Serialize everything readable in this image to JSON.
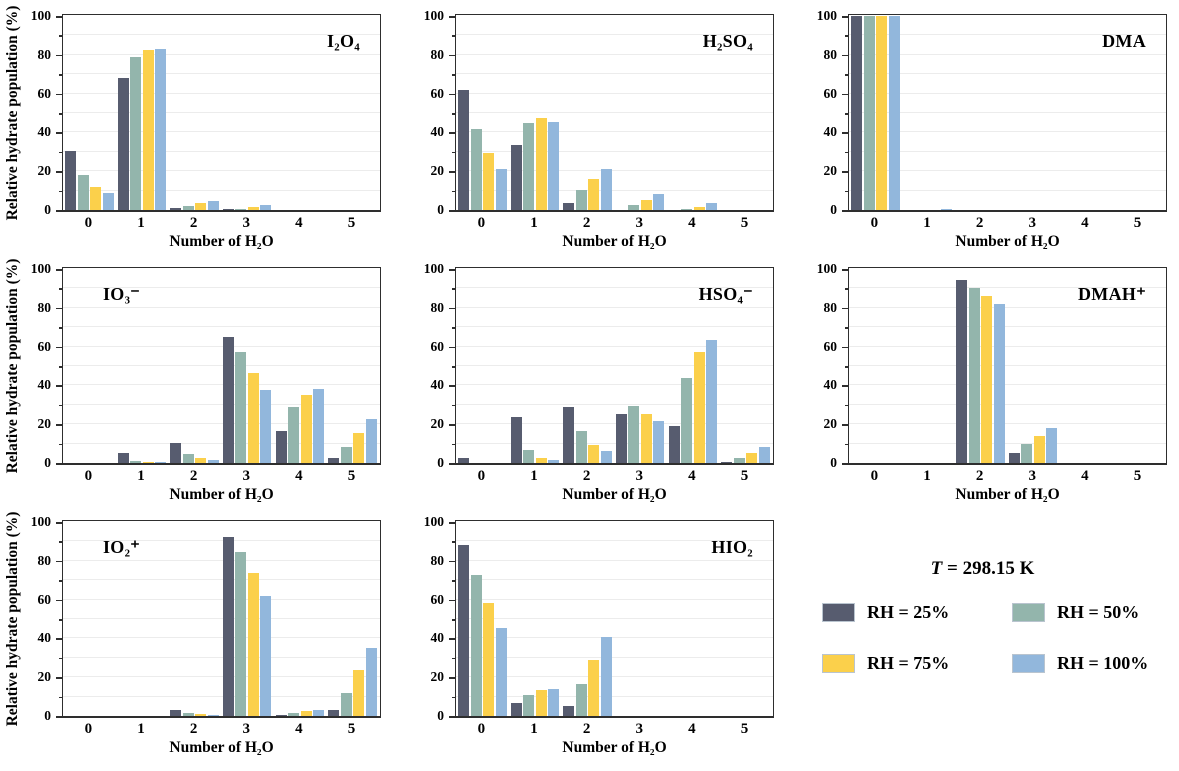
{
  "figure": {
    "ylabel": "Relative hydrate population (%)",
    "xlabel": "Number of H₂O",
    "categories": [
      "0",
      "1",
      "2",
      "3",
      "4",
      "5"
    ],
    "yticks": [
      0,
      20,
      40,
      60,
      80,
      100
    ],
    "ylim": [
      0,
      100
    ],
    "grid": "horizontal, every 10, light gray",
    "gridline_color": "#ececec",
    "axis_color": "#2e2e2e"
  },
  "legend": {
    "temp_symbol": "T",
    "temp_rest": " = 298.15 K",
    "position": "bottom-right cell of 3x3 grid",
    "entries": [
      {
        "label": "RH = 25%",
        "color": "#575c6f"
      },
      {
        "label": "RH = 50%",
        "color": "#93b5ac"
      },
      {
        "label": "RH = 75%",
        "color": "#fbd04b"
      },
      {
        "label": "RH = 100%",
        "color": "#92b7dc"
      }
    ]
  },
  "chart_data": [
    {
      "type": "bar",
      "title": "I₂O₄",
      "title_pos": "right",
      "xlabel": "Number of H₂O",
      "ylabel": "Relative hydrate population (%)",
      "ylim": [
        0,
        100
      ],
      "categories": [
        "0",
        "1",
        "2",
        "3",
        "4",
        "5"
      ],
      "series": [
        {
          "name": "RH = 25%",
          "values": [
            30.5,
            68,
            1,
            0.3,
            0,
            0
          ]
        },
        {
          "name": "RH = 50%",
          "values": [
            18,
            79,
            2,
            0.5,
            0,
            0
          ]
        },
        {
          "name": "RH = 75%",
          "values": [
            12,
            82.5,
            3.5,
            1.5,
            0,
            0
          ]
        },
        {
          "name": "RH = 100%",
          "values": [
            9,
            83,
            4.5,
            2.7,
            0,
            0
          ]
        }
      ]
    },
    {
      "type": "bar",
      "title": "H₂SO₄",
      "title_pos": "right",
      "xlabel": "Number of H₂O",
      "ylabel": "Relative hydrate population (%)",
      "ylim": [
        0,
        100
      ],
      "categories": [
        "0",
        "1",
        "2",
        "3",
        "4",
        "5"
      ],
      "series": [
        {
          "name": "RH = 25%",
          "values": [
            62,
            33.5,
            3.5,
            0,
            0,
            0
          ]
        },
        {
          "name": "RH = 50%",
          "values": [
            42,
            45,
            10.5,
            2.5,
            0.5,
            0
          ]
        },
        {
          "name": "RH = 75%",
          "values": [
            29.5,
            47.5,
            16,
            5,
            1.5,
            0
          ]
        },
        {
          "name": "RH = 100%",
          "values": [
            21,
            45.5,
            21,
            8.5,
            3.5,
            0
          ]
        }
      ]
    },
    {
      "type": "bar",
      "title": "DMA",
      "title_pos": "right",
      "xlabel": "Number of H₂O",
      "ylabel": "Relative hydrate population (%)",
      "ylim": [
        0,
        100
      ],
      "categories": [
        "0",
        "1",
        "2",
        "3",
        "4",
        "5"
      ],
      "series": [
        {
          "name": "RH = 25%",
          "values": [
            100,
            0,
            0,
            0,
            0,
            0
          ]
        },
        {
          "name": "RH = 50%",
          "values": [
            100,
            0,
            0,
            0,
            0,
            0
          ]
        },
        {
          "name": "RH = 75%",
          "values": [
            100,
            0,
            0,
            0,
            0,
            0
          ]
        },
        {
          "name": "RH = 100%",
          "values": [
            100,
            0.4,
            0,
            0,
            0,
            0
          ]
        }
      ]
    },
    {
      "type": "bar",
      "title": "IO₃⁻",
      "title_pos": "left",
      "xlabel": "Number of H₂O",
      "ylabel": "Relative hydrate population (%)",
      "ylim": [
        0,
        100
      ],
      "categories": [
        "0",
        "1",
        "2",
        "3",
        "4",
        "5"
      ],
      "series": [
        {
          "name": "RH = 25%",
          "values": [
            0,
            5,
            10.5,
            65,
            16.5,
            2.5
          ]
        },
        {
          "name": "RH = 50%",
          "values": [
            0,
            1,
            4.5,
            57,
            29,
            8.5
          ]
        },
        {
          "name": "RH = 75%",
          "values": [
            0,
            0.3,
            2.5,
            46.5,
            35,
            15.5
          ]
        },
        {
          "name": "RH = 100%",
          "values": [
            0,
            0.3,
            1.5,
            37.5,
            38,
            22.5
          ]
        }
      ]
    },
    {
      "type": "bar",
      "title": "HSO₄⁻",
      "title_pos": "right",
      "xlabel": "Number of H₂O",
      "ylabel": "Relative hydrate population (%)",
      "ylim": [
        0,
        100
      ],
      "categories": [
        "0",
        "1",
        "2",
        "3",
        "4",
        "5"
      ],
      "series": [
        {
          "name": "RH = 25%",
          "values": [
            2.5,
            23.5,
            29,
            25.5,
            19,
            0.5
          ]
        },
        {
          "name": "RH = 50%",
          "values": [
            0,
            6.5,
            16.5,
            29.5,
            44,
            2.5
          ]
        },
        {
          "name": "RH = 75%",
          "values": [
            0,
            2.5,
            9.5,
            25.5,
            57,
            5
          ]
        },
        {
          "name": "RH = 100%",
          "values": [
            0,
            1.5,
            6,
            21.5,
            63.5,
            8
          ]
        }
      ]
    },
    {
      "type": "bar",
      "title": "DMAH⁺",
      "title_pos": "right",
      "xlabel": "Number of H₂O",
      "ylabel": "Relative hydrate population (%)",
      "ylim": [
        0,
        100
      ],
      "categories": [
        "0",
        "1",
        "2",
        "3",
        "4",
        "5"
      ],
      "series": [
        {
          "name": "RH = 25%",
          "values": [
            0,
            0,
            94.5,
            5,
            0,
            0
          ]
        },
        {
          "name": "RH = 50%",
          "values": [
            0,
            0,
            90,
            10,
            0,
            0
          ]
        },
        {
          "name": "RH = 75%",
          "values": [
            0,
            0,
            86,
            14,
            0,
            0
          ]
        },
        {
          "name": "RH = 100%",
          "values": [
            0,
            0,
            82,
            18,
            0,
            0
          ]
        }
      ]
    },
    {
      "type": "bar",
      "title": "IO₂⁺",
      "title_pos": "left",
      "xlabel": "Number of H₂O",
      "ylabel": "Relative hydrate population (%)",
      "ylim": [
        0,
        100
      ],
      "categories": [
        "0",
        "1",
        "2",
        "3",
        "4",
        "5"
      ],
      "series": [
        {
          "name": "RH = 25%",
          "values": [
            0,
            0,
            3,
            92.5,
            0.5,
            3
          ]
        },
        {
          "name": "RH = 50%",
          "values": [
            0,
            0,
            1.5,
            84.5,
            1.5,
            12
          ]
        },
        {
          "name": "RH = 75%",
          "values": [
            0,
            0,
            1,
            73.5,
            2.5,
            23.5
          ]
        },
        {
          "name": "RH = 100%",
          "values": [
            0,
            0,
            0.4,
            62,
            3,
            35
          ]
        }
      ]
    },
    {
      "type": "bar",
      "title": "HIO₂",
      "title_pos": "right",
      "xlabel": "Number of H₂O",
      "ylabel": "Relative hydrate population (%)",
      "ylim": [
        0,
        100
      ],
      "categories": [
        "0",
        "1",
        "2",
        "3",
        "4",
        "5"
      ],
      "series": [
        {
          "name": "RH = 25%",
          "values": [
            88,
            6.5,
            5,
            0,
            0,
            0
          ]
        },
        {
          "name": "RH = 50%",
          "values": [
            72.5,
            11,
            16.5,
            0,
            0,
            0
          ]
        },
        {
          "name": "RH = 75%",
          "values": [
            58,
            13.5,
            29,
            0,
            0,
            0
          ]
        },
        {
          "name": "RH = 100%",
          "values": [
            45.5,
            14,
            40.5,
            0,
            0,
            0
          ]
        }
      ]
    }
  ]
}
